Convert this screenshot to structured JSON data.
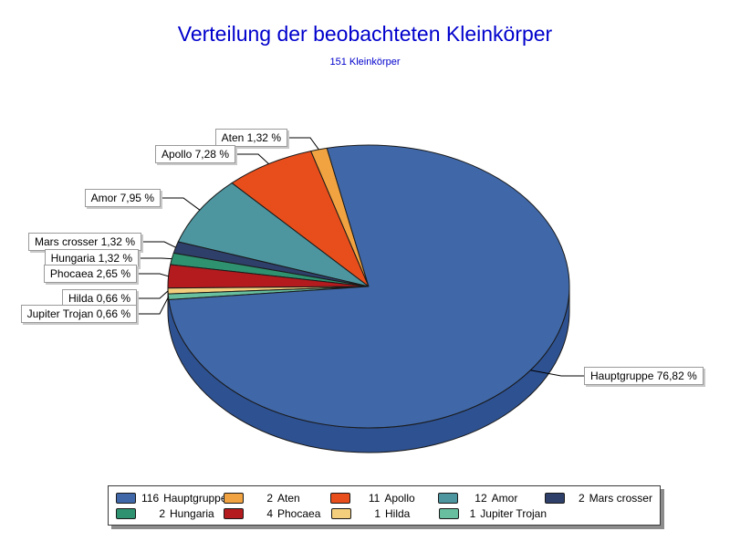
{
  "chart_data": {
    "type": "pie",
    "effect": "3d",
    "title": "Verteilung der beobachteten Kleinkörper",
    "subtitle": "151 Kleinkörper",
    "total": 151,
    "title_color": "#0000cc",
    "legend_position": "bottom",
    "outline_color": "#1a1a1a",
    "rim_color": "#2e5191",
    "slices": [
      {
        "name": "Hauptgruppe",
        "count": 116,
        "pct": 76.82,
        "callout": "Hauptgruppe 76,82 %",
        "color": "#4068a8"
      },
      {
        "name": "Aten",
        "count": 2,
        "pct": 1.32,
        "callout": "Aten 1,32 %",
        "color": "#f0a340"
      },
      {
        "name": "Apollo",
        "count": 11,
        "pct": 7.28,
        "callout": "Apollo 7,28 %",
        "color": "#e84e1b"
      },
      {
        "name": "Amor",
        "count": 12,
        "pct": 7.95,
        "callout": "Amor 7,95 %",
        "color": "#4d96a0"
      },
      {
        "name": "Mars crosser",
        "count": 2,
        "pct": 1.32,
        "callout": "Mars crosser 1,32 %",
        "color": "#2e3f69"
      },
      {
        "name": "Hungaria",
        "count": 2,
        "pct": 1.32,
        "callout": "Hungaria 1,32 %",
        "color": "#2e9170"
      },
      {
        "name": "Phocaea",
        "count": 4,
        "pct": 2.65,
        "callout": "Phocaea 2,65 %",
        "color": "#b41b1e"
      },
      {
        "name": "Hilda",
        "count": 1,
        "pct": 0.66,
        "callout": "Hilda 0,66 %",
        "color": "#f2ce7d"
      },
      {
        "name": "Jupiter Trojan",
        "count": 1,
        "pct": 0.66,
        "callout": "Jupiter Trojan 0,66 %",
        "color": "#67bf9f"
      }
    ],
    "legend_rows": [
      [
        0,
        1,
        2,
        3,
        4
      ],
      [
        5,
        6,
        7,
        8
      ]
    ]
  }
}
